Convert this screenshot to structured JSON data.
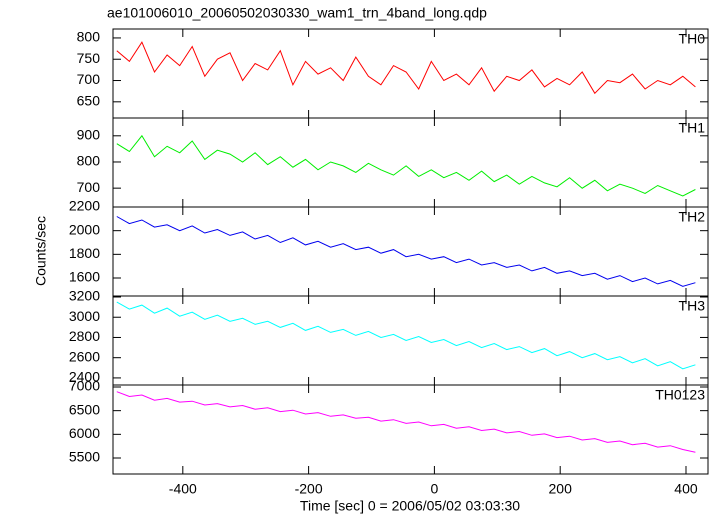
{
  "chart_data": {
    "type": "line",
    "title": "ae101006010_20060502030330_wam1_trn_4band_long.qdp",
    "x_label": "Time [sec] 0 = 2006/05/02 03:03:30",
    "y_label": "Counts/sec",
    "xlim": [
      -511,
      435
    ],
    "xticks": [
      -400,
      -200,
      0,
      200,
      400
    ],
    "x": [
      -505,
      -485,
      -465,
      -445,
      -425,
      -405,
      -385,
      -365,
      -345,
      -325,
      -305,
      -285,
      -265,
      -245,
      -225,
      -205,
      -185,
      -165,
      -145,
      -125,
      -105,
      -85,
      -65,
      -45,
      -25,
      -5,
      15,
      35,
      55,
      75,
      95,
      115,
      135,
      155,
      175,
      195,
      215,
      235,
      255,
      275,
      295,
      315,
      335,
      355,
      375,
      395,
      415
    ],
    "series": [
      {
        "name": "TH0",
        "color": "#ff0000",
        "ylim": [
          612,
          821
        ],
        "yticks": [
          650,
          700,
          750,
          800
        ],
        "values": [
          770,
          745,
          790,
          720,
          760,
          735,
          780,
          710,
          750,
          765,
          700,
          740,
          725,
          770,
          690,
          745,
          715,
          730,
          700,
          755,
          710,
          690,
          735,
          720,
          680,
          745,
          700,
          715,
          690,
          730,
          675,
          710,
          700,
          725,
          685,
          705,
          690,
          720,
          670,
          700,
          695,
          715,
          680,
          700,
          690,
          710,
          685
        ]
      },
      {
        "name": "TH1",
        "color": "#00ee00",
        "ylim": [
          628,
          968
        ],
        "yticks": [
          700,
          800,
          900
        ],
        "values": [
          870,
          840,
          900,
          820,
          860,
          835,
          880,
          810,
          845,
          830,
          800,
          835,
          790,
          820,
          780,
          810,
          770,
          800,
          785,
          760,
          795,
          770,
          750,
          785,
          745,
          770,
          740,
          760,
          730,
          765,
          725,
          750,
          715,
          745,
          720,
          705,
          740,
          700,
          730,
          690,
          715,
          700,
          680,
          710,
          690,
          670,
          695
        ]
      },
      {
        "name": "TH2",
        "color": "#0000ee",
        "ylim": [
          1448,
          2200
        ],
        "yticks": [
          1600,
          1800,
          2000,
          2200
        ],
        "values": [
          2120,
          2060,
          2090,
          2030,
          2050,
          2000,
          2040,
          1980,
          2010,
          1960,
          1990,
          1930,
          1960,
          1900,
          1940,
          1880,
          1910,
          1860,
          1890,
          1840,
          1860,
          1810,
          1840,
          1780,
          1800,
          1760,
          1780,
          1730,
          1760,
          1710,
          1730,
          1690,
          1710,
          1660,
          1690,
          1640,
          1660,
          1620,
          1640,
          1590,
          1620,
          1570,
          1600,
          1550,
          1580,
          1530,
          1560
        ]
      },
      {
        "name": "TH3",
        "color": "#00ffff",
        "ylim": [
          2330,
          3210
        ],
        "yticks": [
          2400,
          2600,
          2800,
          3000,
          3200
        ],
        "values": [
          3150,
          3080,
          3120,
          3040,
          3090,
          3010,
          3050,
          2980,
          3020,
          2960,
          2990,
          2930,
          2960,
          2900,
          2940,
          2870,
          2910,
          2850,
          2880,
          2820,
          2860,
          2800,
          2830,
          2770,
          2810,
          2750,
          2780,
          2720,
          2760,
          2700,
          2740,
          2680,
          2710,
          2650,
          2690,
          2620,
          2660,
          2600,
          2640,
          2580,
          2610,
          2550,
          2590,
          2520,
          2560,
          2490,
          2530
        ]
      },
      {
        "name": "TH0123",
        "color": "#ff00ff",
        "ylim": [
          5162,
          7042
        ],
        "yticks": [
          5500,
          6000,
          6500,
          7000
        ],
        "values": [
          6900,
          6800,
          6830,
          6720,
          6760,
          6680,
          6700,
          6620,
          6650,
          6580,
          6610,
          6530,
          6560,
          6480,
          6510,
          6430,
          6460,
          6380,
          6410,
          6340,
          6360,
          6280,
          6310,
          6230,
          6260,
          6180,
          6210,
          6130,
          6160,
          6080,
          6110,
          6030,
          6060,
          5980,
          6010,
          5930,
          5960,
          5880,
          5910,
          5830,
          5860,
          5780,
          5810,
          5730,
          5760,
          5680,
          5620
        ]
      }
    ]
  }
}
